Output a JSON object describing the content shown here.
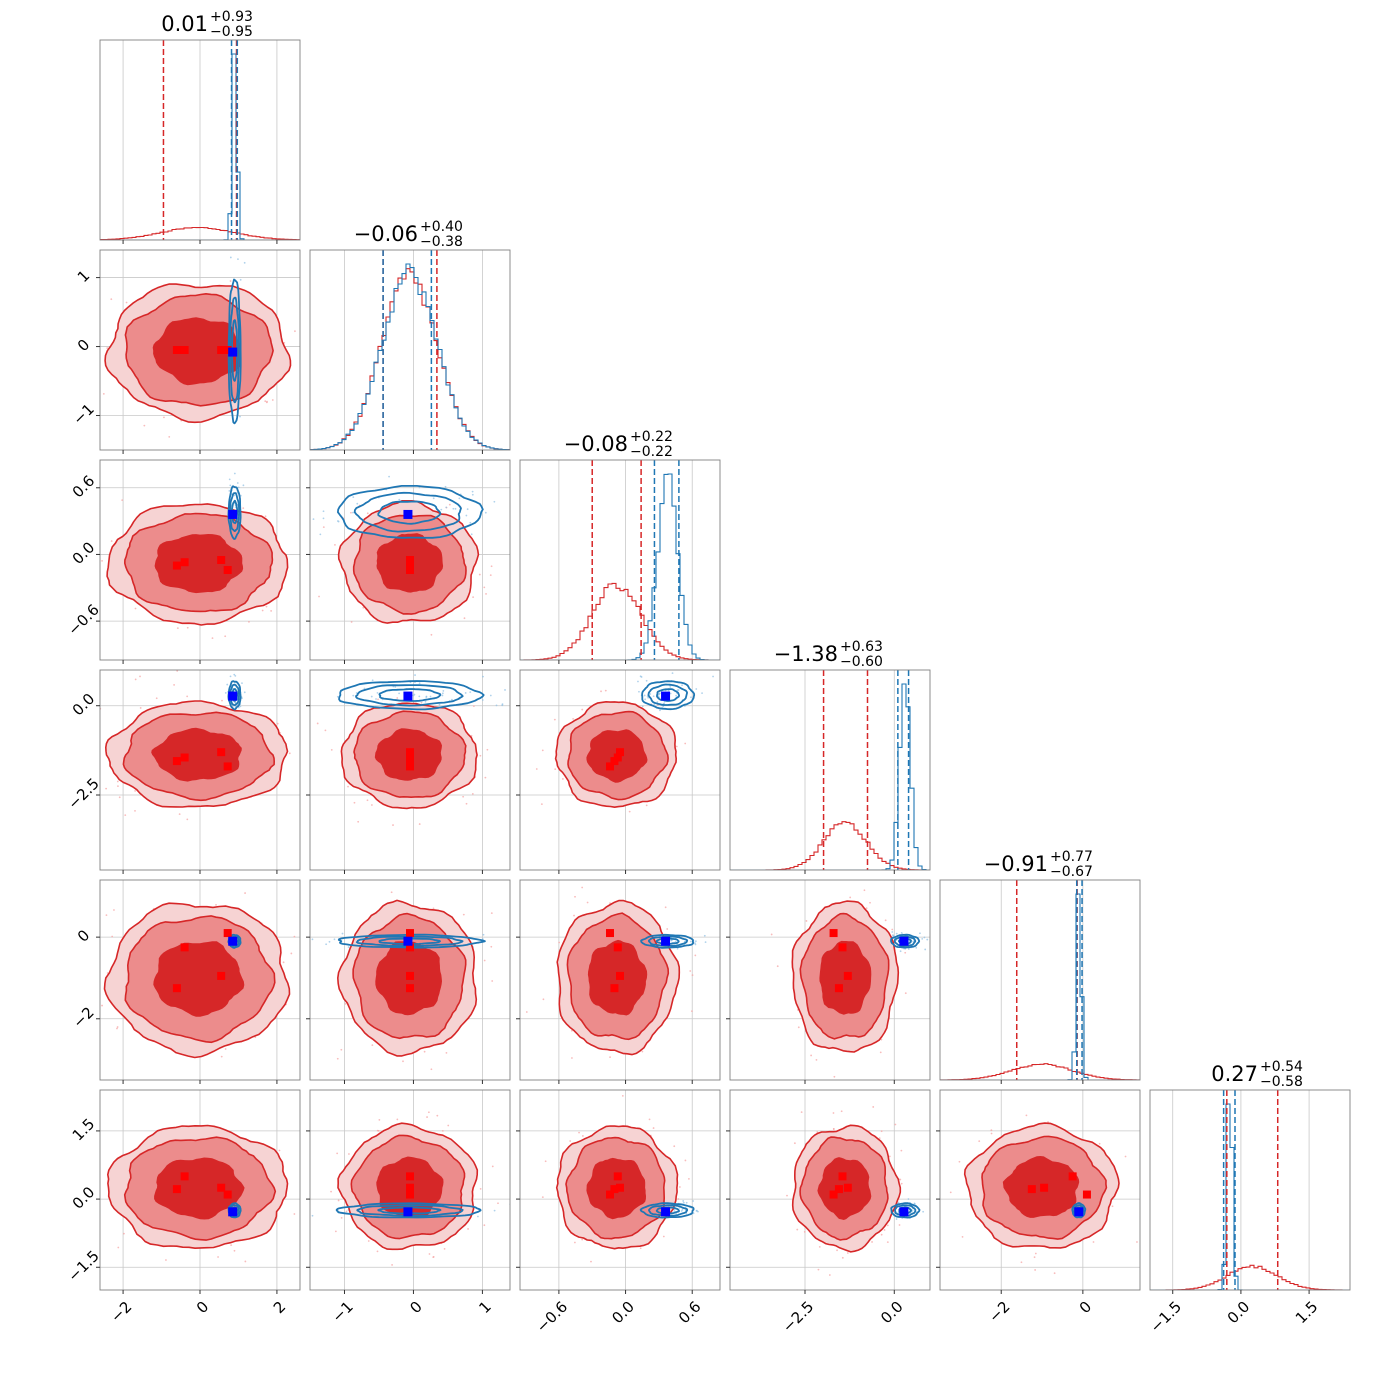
{
  "chart_data": {
    "type": "corner",
    "n_params": 6,
    "grid": true,
    "colors": {
      "red": "#d62728",
      "red_mid": "#ec8c8c",
      "red_light": "#f6d3d3",
      "blue": "#1f77b4",
      "blue_marker": "#0000ff",
      "red_marker": "#ff0000"
    },
    "titles": [
      {
        "median": "0.01",
        "plus": "+0.93",
        "minus": "−0.95"
      },
      {
        "median": "−0.06",
        "plus": "+0.40",
        "minus": "−0.38"
      },
      {
        "median": "−0.08",
        "plus": "+0.22",
        "minus": "−0.22"
      },
      {
        "median": "−1.38",
        "plus": "+0.63",
        "minus": "−0.60"
      },
      {
        "median": "−0.91",
        "plus": "+0.77",
        "minus": "−0.67"
      },
      {
        "median": "0.27",
        "plus": "+0.54",
        "minus": "−0.58"
      }
    ],
    "ranges": [
      [
        -2.6,
        2.6
      ],
      [
        -1.5,
        1.4
      ],
      [
        -0.95,
        0.85
      ],
      [
        -4.6,
        1.0
      ],
      [
        -3.5,
        1.4
      ],
      [
        -2.0,
        2.4
      ]
    ],
    "ticks": [
      {
        "values": [
          -2,
          0,
          2
        ],
        "labels": [
          "−2",
          "0",
          "2"
        ]
      },
      {
        "values": [
          -1,
          0,
          1
        ],
        "labels": [
          "−1",
          "0",
          "1"
        ]
      },
      {
        "values": [
          -0.6,
          0.0,
          0.6
        ],
        "labels": [
          "−0.6",
          "0.0",
          "0.6"
        ]
      },
      {
        "values": [
          -2.5,
          0.0
        ],
        "labels": [
          "−2.5",
          "0.0"
        ]
      },
      {
        "values": [
          -2,
          0
        ],
        "labels": [
          "−2",
          "0"
        ]
      },
      {
        "values": [
          -1.5,
          0.0,
          1.5
        ],
        "labels": [
          "−1.5",
          "0.0",
          "1.5"
        ]
      }
    ],
    "red_posterior": {
      "mean": [
        -0.05,
        -0.06,
        -0.08,
        -1.38,
        -1.0,
        0.25
      ],
      "sd": [
        0.95,
        0.4,
        0.22,
        0.6,
        0.75,
        0.55
      ],
      "quantile_lines": [
        [
          -0.95,
          0.95
        ],
        [
          -0.44,
          0.34
        ],
        [
          -0.3,
          0.14
        ],
        [
          -1.98,
          -0.75
        ],
        [
          -1.62,
          -0.14
        ],
        [
          -0.31,
          0.81
        ]
      ]
    },
    "blue_posterior": {
      "mean": [
        0.9,
        -0.06,
        0.38,
        0.3,
        -0.1,
        -0.25
      ],
      "sd": [
        0.06,
        0.4,
        0.09,
        0.15,
        0.06,
        0.06
      ],
      "quantile_lines": [
        [
          0.82,
          0.97
        ],
        [
          -0.44,
          0.26
        ],
        [
          0.26,
          0.48
        ],
        [
          0.1,
          0.4
        ],
        [
          -0.15,
          -0.02
        ],
        [
          -0.38,
          -0.13
        ]
      ]
    },
    "blue_truth": [
      0.85,
      -0.08,
      0.36,
      0.27,
      -0.1,
      -0.28
    ],
    "red_markers": [
      [
        -0.6,
        -0.05,
        -0.1,
        -1.55,
        -1.25,
        0.22
      ],
      [
        -0.4,
        -0.05,
        -0.07,
        -1.45,
        -0.25,
        0.5
      ],
      [
        0.55,
        -0.05,
        -0.05,
        -1.3,
        -0.95,
        0.25
      ],
      [
        0.72,
        -0.05,
        -0.14,
        -1.7,
        0.1,
        0.1
      ]
    ]
  }
}
